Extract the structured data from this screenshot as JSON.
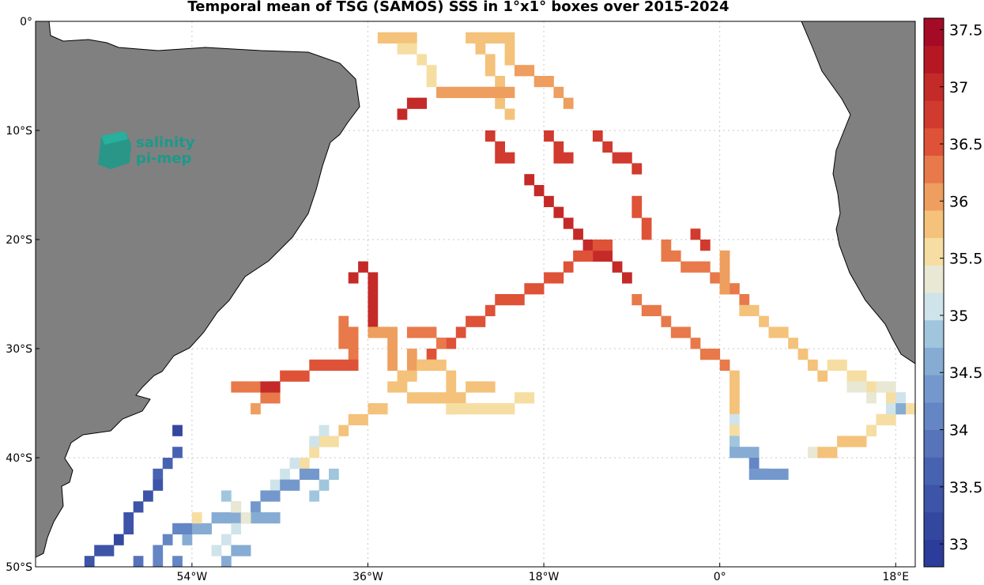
{
  "title": "Temporal mean of TSG (SAMOS) SSS in 1°x1° boxes over 2015-2024",
  "logo": {
    "line1": "salinity",
    "line2": "pi-mep",
    "color": "#1a9a8a"
  },
  "map": {
    "lon_range": [
      -70,
      20
    ],
    "lat_range": [
      -50,
      0
    ],
    "lat_ticks": [
      {
        "value": 0,
        "label": "0°"
      },
      {
        "value": -10,
        "label": "10°S"
      },
      {
        "value": -20,
        "label": "20°S"
      },
      {
        "value": -30,
        "label": "30°S"
      },
      {
        "value": -40,
        "label": "40°S"
      },
      {
        "value": -50,
        "label": "50°S"
      }
    ],
    "lon_ticks": [
      {
        "value": -54,
        "label": "54°W"
      },
      {
        "value": -36,
        "label": "36°W"
      },
      {
        "value": -18,
        "label": "18°W"
      },
      {
        "value": 0,
        "label": "0°"
      },
      {
        "value": 18,
        "label": "18°E"
      }
    ],
    "grid": true,
    "land_color": "#808080",
    "ocean_color": "#ffffff"
  },
  "colorbar": {
    "position": "right",
    "range": [
      32.8,
      37.6
    ],
    "ticks": [
      {
        "value": 33,
        "label": "33"
      },
      {
        "value": 33.5,
        "label": "33.5"
      },
      {
        "value": 34,
        "label": "34"
      },
      {
        "value": 34.5,
        "label": "34.5"
      },
      {
        "value": 35,
        "label": "35"
      },
      {
        "value": 35.5,
        "label": "35.5"
      },
      {
        "value": 36,
        "label": "36"
      },
      {
        "value": 36.5,
        "label": "36.5"
      },
      {
        "value": 37,
        "label": "37"
      },
      {
        "value": 37.5,
        "label": "37.5"
      }
    ],
    "colors": [
      "#2c3c9a",
      "#34479f",
      "#3d54a8",
      "#4862b2",
      "#5773ba",
      "#6586c4",
      "#7498cc",
      "#86acd4",
      "#a0c6de",
      "#cfe4ea",
      "#e9e8d4",
      "#f6dea2",
      "#f4c27a",
      "#ee9e5e",
      "#e8794a",
      "#de5238",
      "#d13a2e",
      "#c42a28",
      "#b51823",
      "#a50a26"
    ]
  },
  "chart_data": {
    "type": "heatmap",
    "title": "Temporal mean of TSG (SAMOS) SSS in 1°x1° boxes over 2015-2024",
    "value_unit": "SSS",
    "cell_size_deg": 1,
    "tracks": [
      {
        "points": [
          [
            -35,
            -1
          ],
          [
            -32,
            -1
          ]
        ],
        "sss": 35.8
      },
      {
        "points": [
          [
            -33,
            -2
          ],
          [
            -31,
            -3
          ],
          [
            -30,
            -5
          ]
        ],
        "sss": 35.6
      },
      {
        "points": [
          [
            -26,
            -1
          ],
          [
            -22,
            -1
          ],
          [
            -22,
            -3
          ]
        ],
        "sss": 35.7
      },
      {
        "points": [
          [
            -25,
            -2
          ],
          [
            -23,
            -5
          ],
          [
            -23,
            -7
          ],
          [
            -22,
            -8
          ]
        ],
        "sss": 35.9
      },
      {
        "points": [
          [
            -21,
            -4
          ],
          [
            -18,
            -5
          ],
          [
            -16,
            -7
          ]
        ],
        "sss": 36.0
      },
      {
        "points": [
          [
            -29,
            -6
          ],
          [
            -25,
            -6
          ],
          [
            -22,
            -6
          ]
        ],
        "sss": 36.1
      },
      {
        "points": [
          [
            -31,
            -7
          ],
          [
            -33,
            -8
          ]
        ],
        "sss": 37.0
      },
      {
        "points": [
          [
            -24,
            -10
          ],
          [
            -23,
            -12
          ],
          [
            -22,
            -12
          ]
        ],
        "sss": 36.8
      },
      {
        "points": [
          [
            -18,
            -10
          ],
          [
            -17,
            -12
          ],
          [
            -16,
            -12
          ]
        ],
        "sss": 36.8
      },
      {
        "points": [
          [
            -13,
            -10
          ],
          [
            -11,
            -12
          ],
          [
            -9,
            -13
          ]
        ],
        "sss": 36.7
      },
      {
        "points": [
          [
            -20,
            -14
          ],
          [
            -18,
            -16
          ],
          [
            -16,
            -18
          ],
          [
            -15,
            -19
          ],
          [
            -13,
            -21
          ],
          [
            -11,
            -22
          ],
          [
            -10,
            -23
          ]
        ],
        "sss": 37.0
      },
      {
        "points": [
          [
            -9,
            -16
          ],
          [
            -9,
            -17
          ]
        ],
        "sss": 36.6
      },
      {
        "points": [
          [
            -8,
            -18
          ],
          [
            -8,
            -19
          ]
        ],
        "sss": 36.5
      },
      {
        "points": [
          [
            -3,
            -19
          ],
          [
            -2,
            -20
          ]
        ],
        "sss": 36.8
      },
      {
        "points": [
          [
            -12,
            -20
          ],
          [
            -14,
            -21
          ],
          [
            -16,
            -22
          ],
          [
            -19,
            -24
          ],
          [
            -22,
            -25
          ],
          [
            -24,
            -26
          ],
          [
            -25,
            -27
          ],
          [
            -27,
            -28
          ],
          [
            -30,
            -30
          ]
        ],
        "sss": 36.5
      },
      {
        "points": [
          [
            -6,
            -20
          ],
          [
            -6,
            -21
          ],
          [
            -4,
            -22
          ],
          [
            -2,
            -22
          ],
          [
            0,
            -24
          ],
          [
            2,
            -25
          ]
        ],
        "sss": 36.2
      },
      {
        "points": [
          [
            0,
            -21
          ],
          [
            0,
            -24
          ]
        ],
        "sss": 36.1
      },
      {
        "points": [
          [
            -9,
            -25
          ],
          [
            -8,
            -26
          ],
          [
            -6,
            -27
          ],
          [
            -5,
            -28
          ],
          [
            -3,
            -29
          ],
          [
            -2,
            -30
          ],
          [
            0,
            -31
          ]
        ],
        "sss": 36.4
      },
      {
        "points": [
          [
            2,
            -26
          ],
          [
            4,
            -27
          ],
          [
            5,
            -28
          ],
          [
            7,
            -29
          ],
          [
            8,
            -30
          ],
          [
            9,
            -31
          ],
          [
            10,
            -32
          ]
        ],
        "sss": 35.9
      },
      {
        "points": [
          [
            11,
            -31
          ],
          [
            13,
            -32
          ],
          [
            15,
            -33
          ],
          [
            17,
            -34
          ],
          [
            18,
            -35
          ]
        ],
        "sss": 35.6
      },
      {
        "points": [
          [
            -38,
            -23
          ],
          [
            -37,
            -22
          ],
          [
            -36,
            -23
          ],
          [
            -36,
            -25
          ],
          [
            -36,
            -27
          ]
        ],
        "sss": 37.0
      },
      {
        "points": [
          [
            -39,
            -27
          ],
          [
            -39,
            -29
          ]
        ],
        "sss": 36.4
      },
      {
        "points": [
          [
            -38,
            -28
          ],
          [
            -38,
            -31
          ]
        ],
        "sss": 36.2
      },
      {
        "points": [
          [
            -36,
            -28
          ],
          [
            -34,
            -28
          ],
          [
            -34,
            -31
          ]
        ],
        "sss": 36.1
      },
      {
        "points": [
          [
            -32,
            -28
          ],
          [
            -30,
            -28
          ],
          [
            -29,
            -29
          ]
        ],
        "sss": 36.3
      },
      {
        "points": [
          [
            -32,
            -30
          ],
          [
            -32,
            -31
          ],
          [
            -30,
            -31
          ]
        ],
        "sss": 36.0
      },
      {
        "points": [
          [
            -46,
            -33
          ],
          [
            -44,
            -32
          ],
          [
            -40,
            -31
          ],
          [
            -38,
            -31
          ]
        ],
        "sss": 36.5
      },
      {
        "points": [
          [
            -46,
            -34
          ],
          [
            -50,
            -33
          ]
        ],
        "sss": 36.3
      },
      {
        "points": [
          [
            -47,
            -33
          ],
          [
            -46,
            -33
          ]
        ],
        "sss": 37.0
      },
      {
        "points": [
          [
            -48,
            -35
          ]
        ],
        "sss": 36.0
      },
      {
        "points": [
          [
            -33,
            -32
          ],
          [
            -30,
            -31
          ],
          [
            -28,
            -32
          ],
          [
            -28,
            -35
          ]
        ],
        "sss": 35.9
      },
      {
        "points": [
          [
            -34,
            -33
          ],
          [
            -31,
            -34
          ],
          [
            -28,
            -34
          ],
          [
            -24,
            -33
          ]
        ],
        "sss": 35.8
      },
      {
        "points": [
          [
            -28,
            -35
          ],
          [
            -26,
            -35
          ],
          [
            -22,
            -35
          ],
          [
            -20,
            -34
          ]
        ],
        "sss": 35.5
      },
      {
        "points": [
          [
            -35,
            -35
          ],
          [
            -38,
            -36
          ],
          [
            -39,
            -37
          ]
        ],
        "sss": 35.8
      },
      {
        "points": [
          [
            -40,
            -38
          ],
          [
            -42,
            -39
          ],
          [
            -43,
            -40
          ]
        ],
        "sss": 35.5
      },
      {
        "points": [
          [
            -41,
            -37
          ],
          [
            -42,
            -38
          ]
        ],
        "sss": 35.1
      },
      {
        "points": [
          [
            -44,
            -40
          ],
          [
            -45,
            -41
          ],
          [
            -47,
            -43
          ],
          [
            -48,
            -44
          ]
        ],
        "sss": 35.1
      },
      {
        "points": [
          [
            -40,
            -41
          ],
          [
            -41,
            -42
          ],
          [
            -42,
            -43
          ]
        ],
        "sss": 34.8
      },
      {
        "points": [
          [
            -42,
            -41
          ],
          [
            -45,
            -42
          ],
          [
            -46,
            -43
          ],
          [
            -48,
            -44
          ]
        ],
        "sss": 34.3
      },
      {
        "points": [
          [
            -46,
            -45
          ],
          [
            -50,
            -45
          ],
          [
            -54,
            -46
          ],
          [
            -55,
            -47
          ]
        ],
        "sss": 34.7
      },
      {
        "points": [
          [
            -50,
            -46
          ],
          [
            -51,
            -47
          ],
          [
            -52,
            -48
          ]
        ],
        "sss": 35.0
      },
      {
        "points": [
          [
            -54,
            -45
          ],
          [
            -55,
            -46
          ]
        ],
        "sss": 35.6
      },
      {
        "points": [
          [
            -49,
            -48
          ],
          [
            -51,
            -49
          ]
        ],
        "sss": 34.6
      },
      {
        "points": [
          [
            -55,
            -46
          ],
          [
            -57,
            -47
          ],
          [
            -58,
            -48
          ],
          [
            -58,
            -49
          ]
        ],
        "sss": 34.2
      },
      {
        "points": [
          [
            -56,
            -49
          ],
          [
            -56,
            -50
          ]
        ],
        "sss": 34.0
      },
      {
        "points": [
          [
            -51,
            -43
          ],
          [
            -50,
            -44
          ]
        ],
        "sss": 34.9
      },
      {
        "points": [
          [
            -50,
            -44
          ],
          [
            -49,
            -45
          ]
        ],
        "sss": 35.4
      },
      {
        "points": [
          [
            -56,
            -37
          ]
        ],
        "sss": 33.2
      },
      {
        "points": [
          [
            -56,
            -39
          ],
          [
            -57,
            -40
          ],
          [
            -58,
            -41
          ]
        ],
        "sss": 33.7
      },
      {
        "points": [
          [
            -58,
            -42
          ],
          [
            -59,
            -43
          ],
          [
            -60,
            -44
          ]
        ],
        "sss": 33.5
      },
      {
        "points": [
          [
            -61,
            -45
          ],
          [
            -61,
            -46
          ]
        ],
        "sss": 33.4
      },
      {
        "points": [
          [
            -62,
            -47
          ]
        ],
        "sss": 33.2
      },
      {
        "points": [
          [
            -63,
            -48
          ],
          [
            -65,
            -49
          ]
        ],
        "sss": 33.3
      },
      {
        "points": [
          [
            -60,
            -49
          ],
          [
            -59,
            -50
          ]
        ],
        "sss": 33.9
      },
      {
        "points": [
          [
            1,
            -32
          ],
          [
            1,
            -35
          ]
        ],
        "sss": 35.8
      },
      {
        "points": [
          [
            1,
            -36
          ]
        ],
        "sss": 35.0
      },
      {
        "points": [
          [
            1,
            -37
          ]
        ],
        "sss": 35.6
      },
      {
        "points": [
          [
            1,
            -38
          ]
        ],
        "sss": 34.8
      },
      {
        "points": [
          [
            1,
            -39
          ],
          [
            3,
            -39
          ]
        ],
        "sss": 34.5
      },
      {
        "points": [
          [
            3,
            -40
          ],
          [
            4,
            -41
          ]
        ],
        "sss": 34.2
      },
      {
        "points": [
          [
            3,
            -41
          ],
          [
            6,
            -41
          ]
        ],
        "sss": 34.4
      },
      {
        "points": [
          [
            9,
            -39
          ]
        ],
        "sss": 35.4
      },
      {
        "points": [
          [
            10,
            -39
          ],
          [
            11,
            -39
          ],
          [
            12,
            -38
          ],
          [
            14,
            -38
          ],
          [
            15,
            -37
          ],
          [
            16,
            -36
          ]
        ],
        "sss": 35.8
      },
      {
        "points": [
          [
            15,
            -37
          ],
          [
            17,
            -36
          ],
          [
            19,
            -35
          ]
        ],
        "sss": 35.6
      },
      {
        "points": [
          [
            13,
            -33
          ],
          [
            15,
            -34
          ],
          [
            16,
            -33
          ],
          [
            18,
            -34
          ]
        ],
        "sss": 35.4
      },
      {
        "points": [
          [
            17,
            -35
          ],
          [
            18,
            -34
          ]
        ],
        "sss": 35.0
      },
      {
        "points": [
          [
            18,
            -35
          ]
        ],
        "sss": 34.5
      },
      {
        "points": [
          [
            20,
            -36
          ]
        ],
        "sss": 35.7
      }
    ]
  }
}
